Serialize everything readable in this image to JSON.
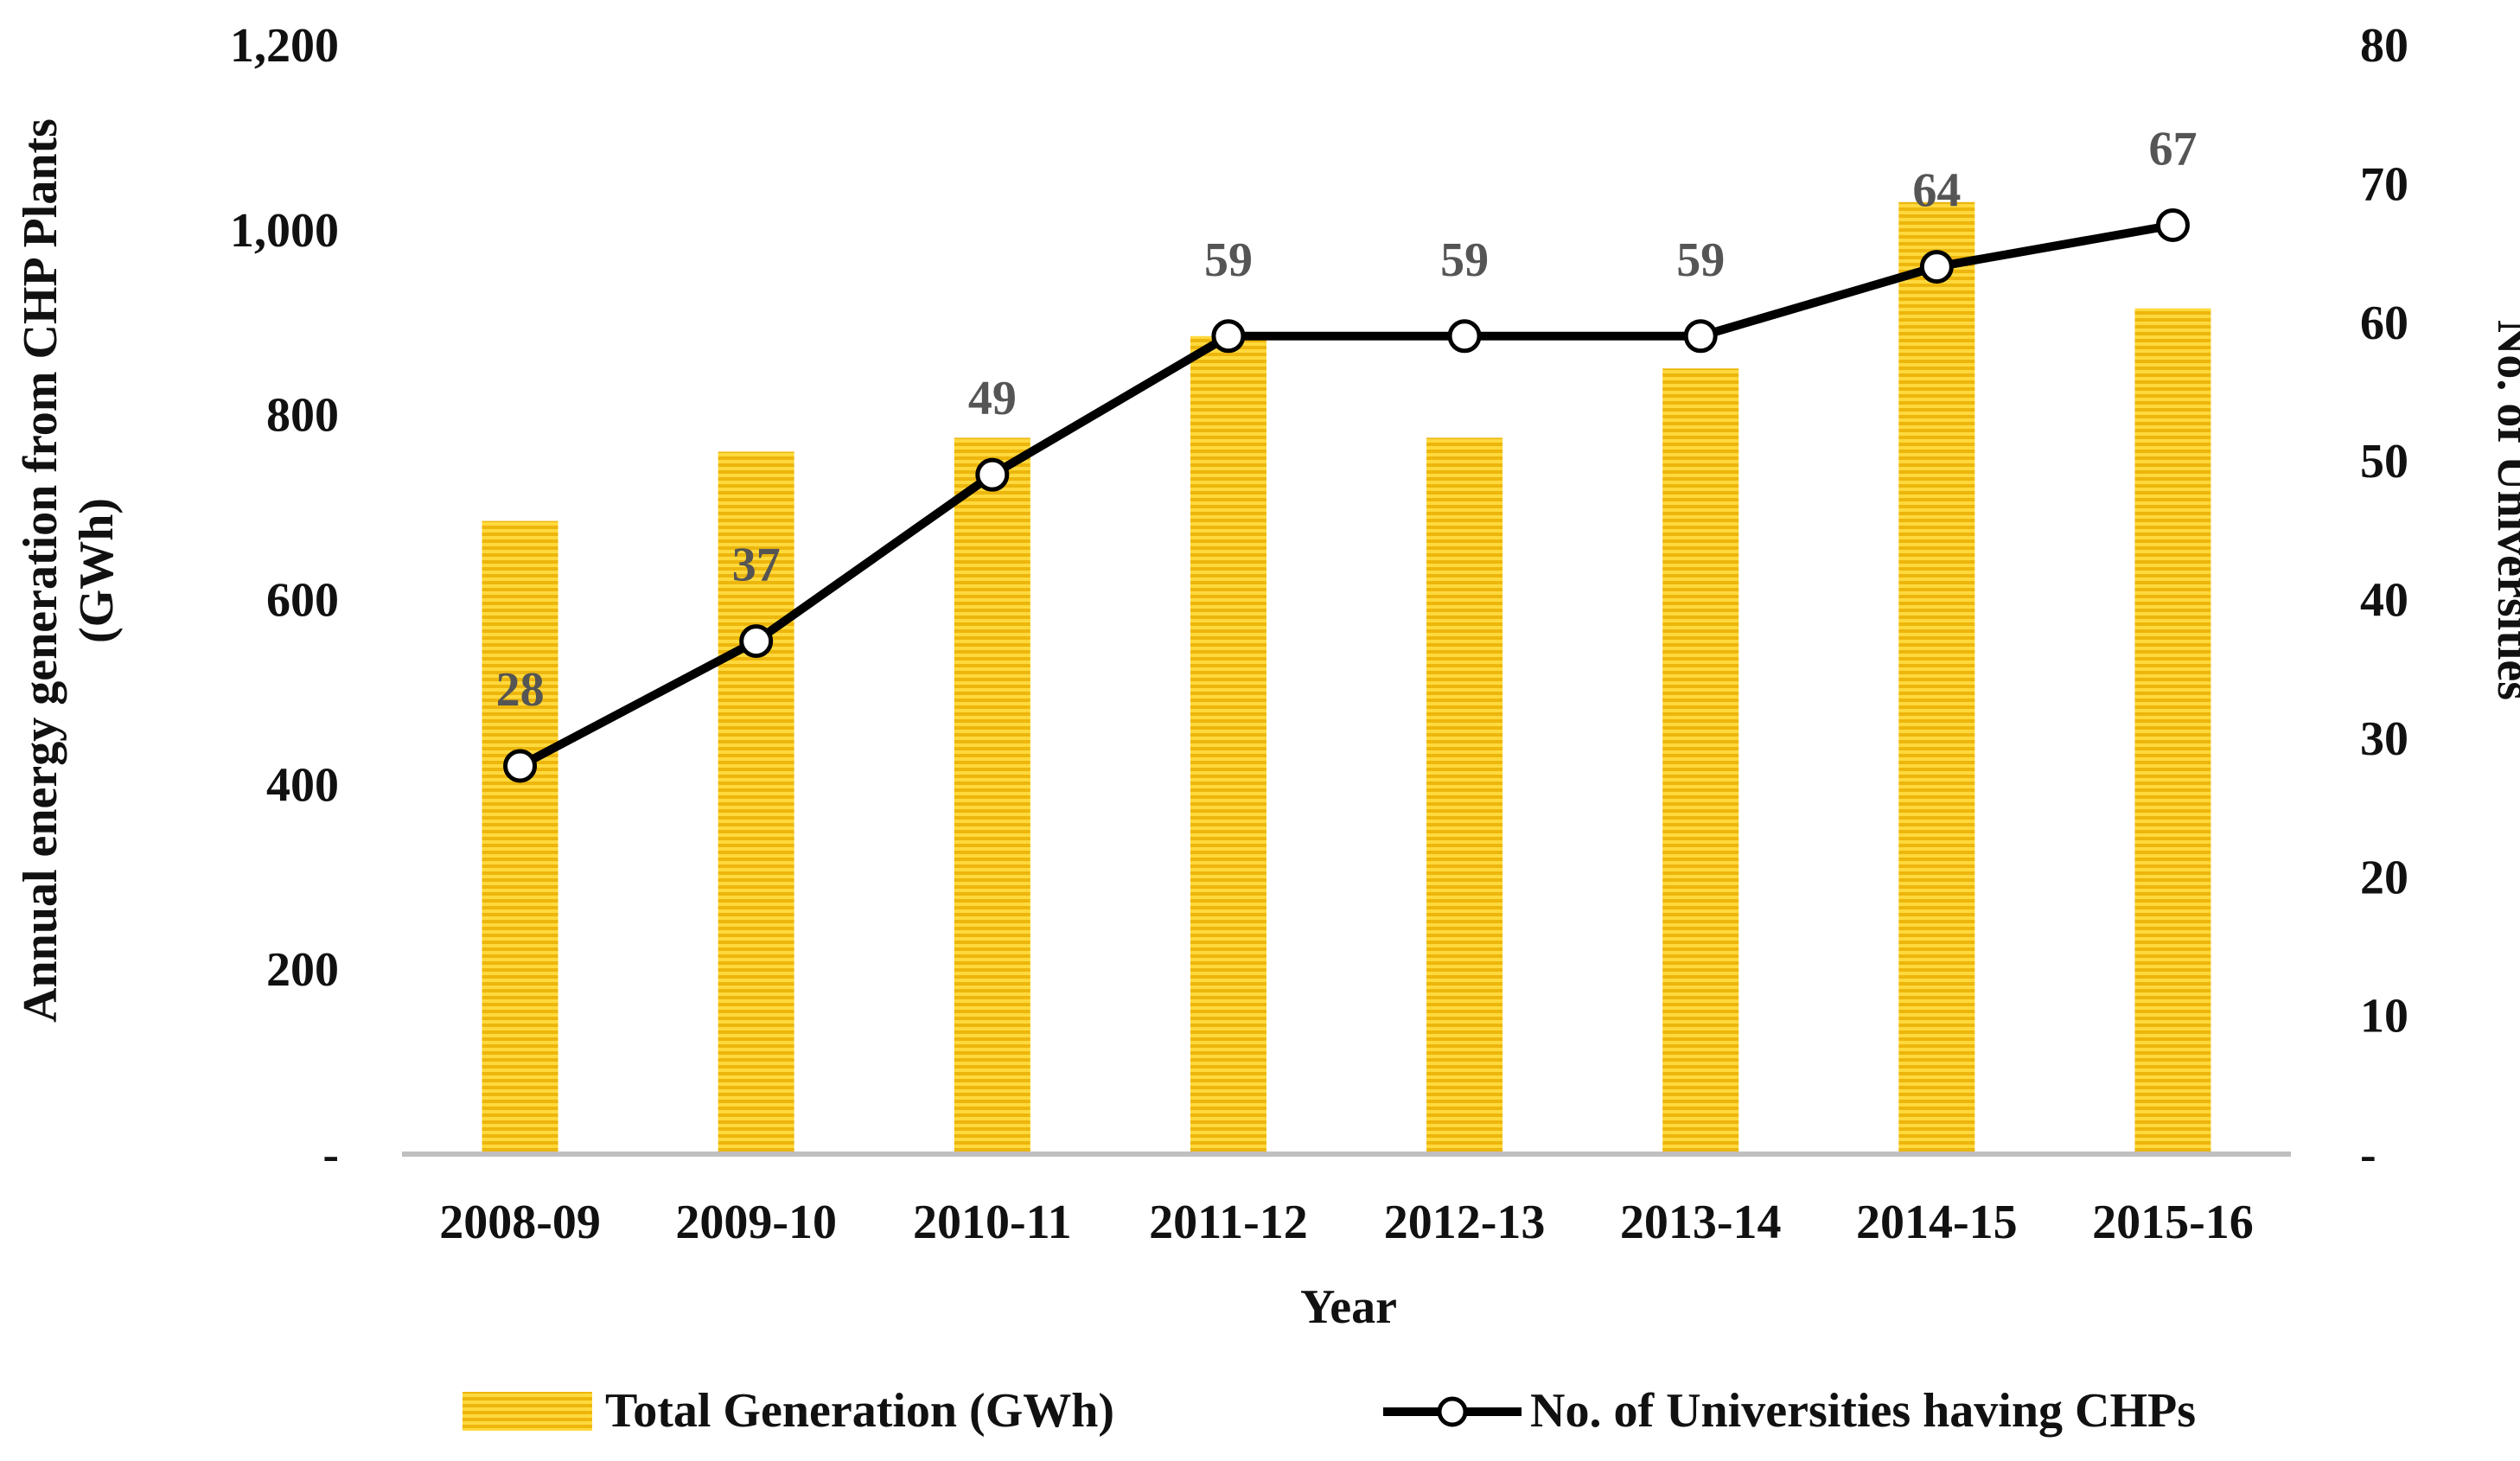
{
  "chart_data": {
    "type": "bar",
    "categories": [
      "2008-09",
      "2009-10",
      "2010-11",
      "2011-12",
      "2012-13",
      "2013-14",
      "2014-15",
      "2015-16"
    ],
    "series": [
      {
        "name": "Total Generation (GWh)",
        "type": "bar",
        "axis": "left",
        "values": [
          685,
          760,
          775,
          885,
          775,
          850,
          1030,
          915
        ],
        "color": "#F5C518"
      },
      {
        "name": "No. of Universities having CHPs",
        "type": "line",
        "axis": "right",
        "values": [
          28,
          37,
          49,
          59,
          59,
          59,
          64,
          67
        ],
        "data_labels": [
          "28",
          "37",
          "49",
          "59",
          "59",
          "59",
          "64",
          "67"
        ],
        "color": "#000000"
      }
    ],
    "xlabel": "Year",
    "ylabel": "Annual energy generation from CHP Plants (GWh)",
    "ylabel_line1": "Annual energy generation from CHP Plants",
    "ylabel_line2": "(GWh)",
    "y2label": "No. of Universities",
    "ylim": [
      0,
      1200
    ],
    "y2lim": [
      0,
      80
    ],
    "yticks": [
      "-",
      "200",
      "400",
      "600",
      "800",
      "1,000",
      "1,200"
    ],
    "y2ticks": [
      "-",
      "10",
      "20",
      "30",
      "40",
      "50",
      "60",
      "70",
      "80"
    ],
    "legend_position": "bottom",
    "grid": false
  }
}
